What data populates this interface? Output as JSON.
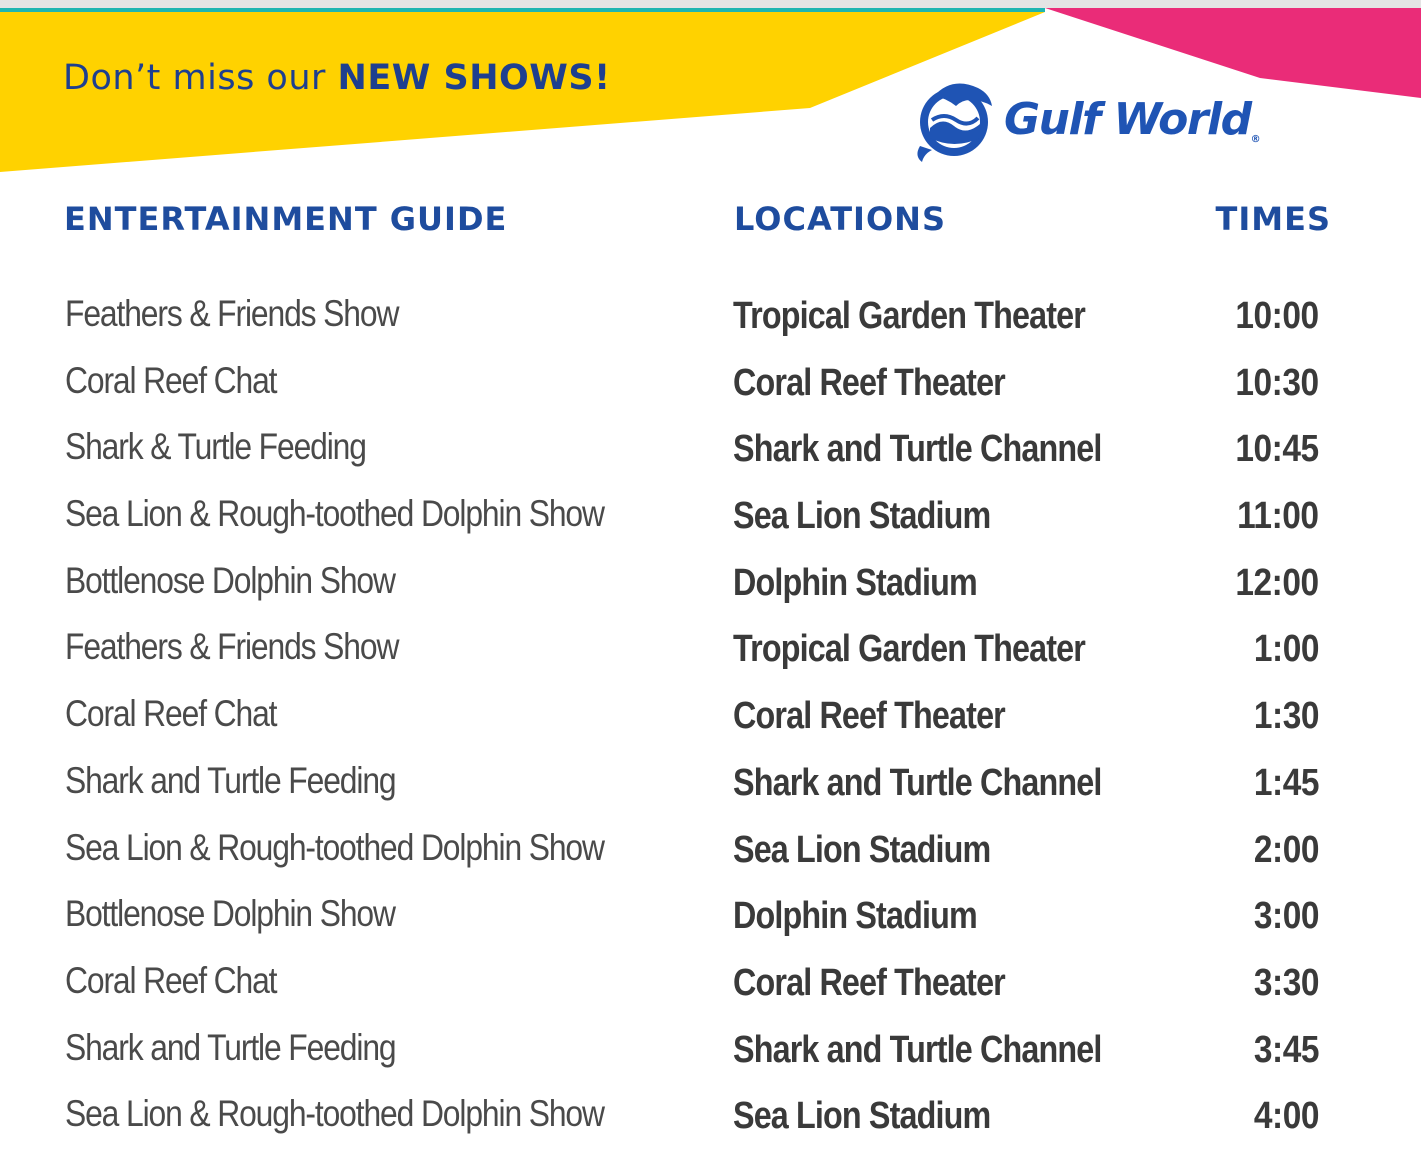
{
  "banner": {
    "tagline_prefix": "Don’t miss our ",
    "tagline_strong": "NEW SHOWS!",
    "colors": {
      "yellow": "#ffd200",
      "teal": "#1fb5b0",
      "pink": "#ea2c78",
      "navy": "#1e3f8f"
    }
  },
  "logo": {
    "icon": "dolphin-globe-icon",
    "name": "Gulf World",
    "reg": "®"
  },
  "headers": {
    "show": "ENTERTAINMENT GUIDE",
    "location": "LOCATIONS",
    "time": "TIMES"
  },
  "rows": [
    {
      "show": "Feathers & Friends Show",
      "location": "Tropical Garden Theater",
      "time": "10:00"
    },
    {
      "show": "Coral Reef Chat",
      "location": "Coral Reef Theater",
      "time": "10:30"
    },
    {
      "show": "Shark & Turtle Feeding",
      "location": "Shark and Turtle Channel",
      "time": "10:45"
    },
    {
      "show": "Sea Lion & Rough-toothed Dolphin Show",
      "location": "Sea Lion Stadium",
      "time": "11:00"
    },
    {
      "show": "Bottlenose Dolphin Show",
      "location": "Dolphin Stadium",
      "time": "12:00"
    },
    {
      "show": "Feathers & Friends Show",
      "location": "Tropical Garden Theater",
      "time": "1:00"
    },
    {
      "show": "Coral Reef Chat",
      "location": "Coral Reef Theater",
      "time": "1:30"
    },
    {
      "show": "Shark and Turtle Feeding",
      "location": "Shark and Turtle Channel",
      "time": "1:45"
    },
    {
      "show": "Sea Lion & Rough-toothed Dolphin Show",
      "location": "Sea Lion Stadium",
      "time": "2:00"
    },
    {
      "show": "Bottlenose Dolphin Show",
      "location": "Dolphin Stadium",
      "time": "3:00"
    },
    {
      "show": "Coral Reef Chat",
      "location": "Coral Reef Theater",
      "time": "3:30"
    },
    {
      "show": "Shark and Turtle Feeding",
      "location": "Shark and Turtle Channel",
      "time": "3:45"
    },
    {
      "show": "Sea Lion & Rough-toothed Dolphin Show",
      "location": "Sea Lion Stadium",
      "time": "4:00"
    }
  ]
}
